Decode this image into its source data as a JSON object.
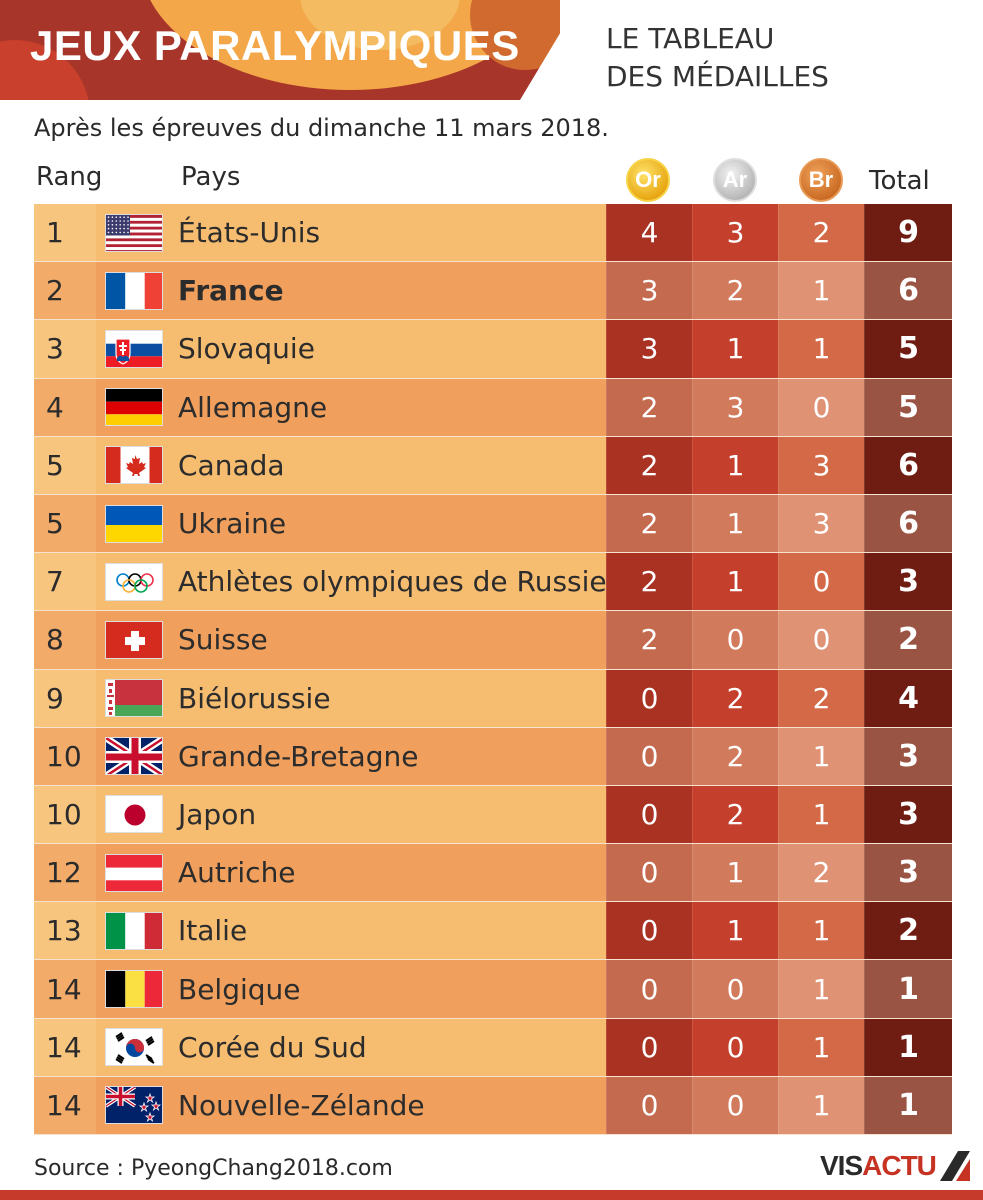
{
  "header": {
    "title": "JEUX PARALYMPIQUES",
    "subtitle_line1": "LE TABLEAU",
    "subtitle_line2": "DES MÉDAILLES"
  },
  "date_note": "Après les épreuves du dimanche 11 mars 2018.",
  "columns": {
    "rank": "Rang",
    "country": "Pays",
    "gold": "Or",
    "silver": "Ar",
    "bronze": "Br",
    "total": "Total"
  },
  "rows": [
    {
      "rank": "1",
      "country": "États-Unis",
      "flag": "usa-flag-icon",
      "gold": "4",
      "silver": "3",
      "bronze": "2",
      "total": "9"
    },
    {
      "rank": "2",
      "country": "France",
      "flag": "france-flag-icon",
      "gold": "3",
      "silver": "2",
      "bronze": "1",
      "total": "6"
    },
    {
      "rank": "3",
      "country": "Slovaquie",
      "flag": "slovakia-flag-icon",
      "gold": "3",
      "silver": "1",
      "bronze": "1",
      "total": "5"
    },
    {
      "rank": "4",
      "country": "Allemagne",
      "flag": "germany-flag-icon",
      "gold": "2",
      "silver": "3",
      "bronze": "0",
      "total": "5"
    },
    {
      "rank": "5",
      "country": "Canada",
      "flag": "canada-flag-icon",
      "gold": "2",
      "silver": "1",
      "bronze": "3",
      "total": "6"
    },
    {
      "rank": "5",
      "country": "Ukraine",
      "flag": "ukraine-flag-icon",
      "gold": "2",
      "silver": "1",
      "bronze": "3",
      "total": "6"
    },
    {
      "rank": "7",
      "country": "Athlètes olympiques de Russie",
      "flag": "olympic-rings-flag-icon",
      "gold": "2",
      "silver": "1",
      "bronze": "0",
      "total": "3"
    },
    {
      "rank": "8",
      "country": "Suisse",
      "flag": "switzerland-flag-icon",
      "gold": "2",
      "silver": "0",
      "bronze": "0",
      "total": "2"
    },
    {
      "rank": "9",
      "country": "Biélorussie",
      "flag": "belarus-flag-icon",
      "gold": "0",
      "silver": "2",
      "bronze": "2",
      "total": "4"
    },
    {
      "rank": "10",
      "country": "Grande-Bretagne",
      "flag": "uk-flag-icon",
      "gold": "0",
      "silver": "2",
      "bronze": "1",
      "total": "3"
    },
    {
      "rank": "10",
      "country": "Japon",
      "flag": "japan-flag-icon",
      "gold": "0",
      "silver": "2",
      "bronze": "1",
      "total": "3"
    },
    {
      "rank": "12",
      "country": "Autriche",
      "flag": "austria-flag-icon",
      "gold": "0",
      "silver": "1",
      "bronze": "2",
      "total": "3"
    },
    {
      "rank": "13",
      "country": "Italie",
      "flag": "italy-flag-icon",
      "gold": "0",
      "silver": "1",
      "bronze": "1",
      "total": "2"
    },
    {
      "rank": "14",
      "country": "Belgique",
      "flag": "belgium-flag-icon",
      "gold": "0",
      "silver": "0",
      "bronze": "1",
      "total": "1"
    },
    {
      "rank": "14",
      "country": "Corée du Sud",
      "flag": "south-korea-flag-icon",
      "gold": "0",
      "silver": "0",
      "bronze": "1",
      "total": "1"
    },
    {
      "rank": "14",
      "country": "Nouvelle-Zélande",
      "flag": "new-zealand-flag-icon",
      "gold": "0",
      "silver": "0",
      "bronze": "1",
      "total": "1"
    }
  ],
  "footer": {
    "source": "Source : PyeongChang2018.com",
    "logo_part1": "VIS",
    "logo_part2": "ACTU"
  },
  "colors": {
    "accent_red": "#c63a2b",
    "gold_col": "#a93223",
    "total_col": "#6f1c13",
    "row_light": "#f6bd71",
    "row_dark": "#f0a05c"
  }
}
